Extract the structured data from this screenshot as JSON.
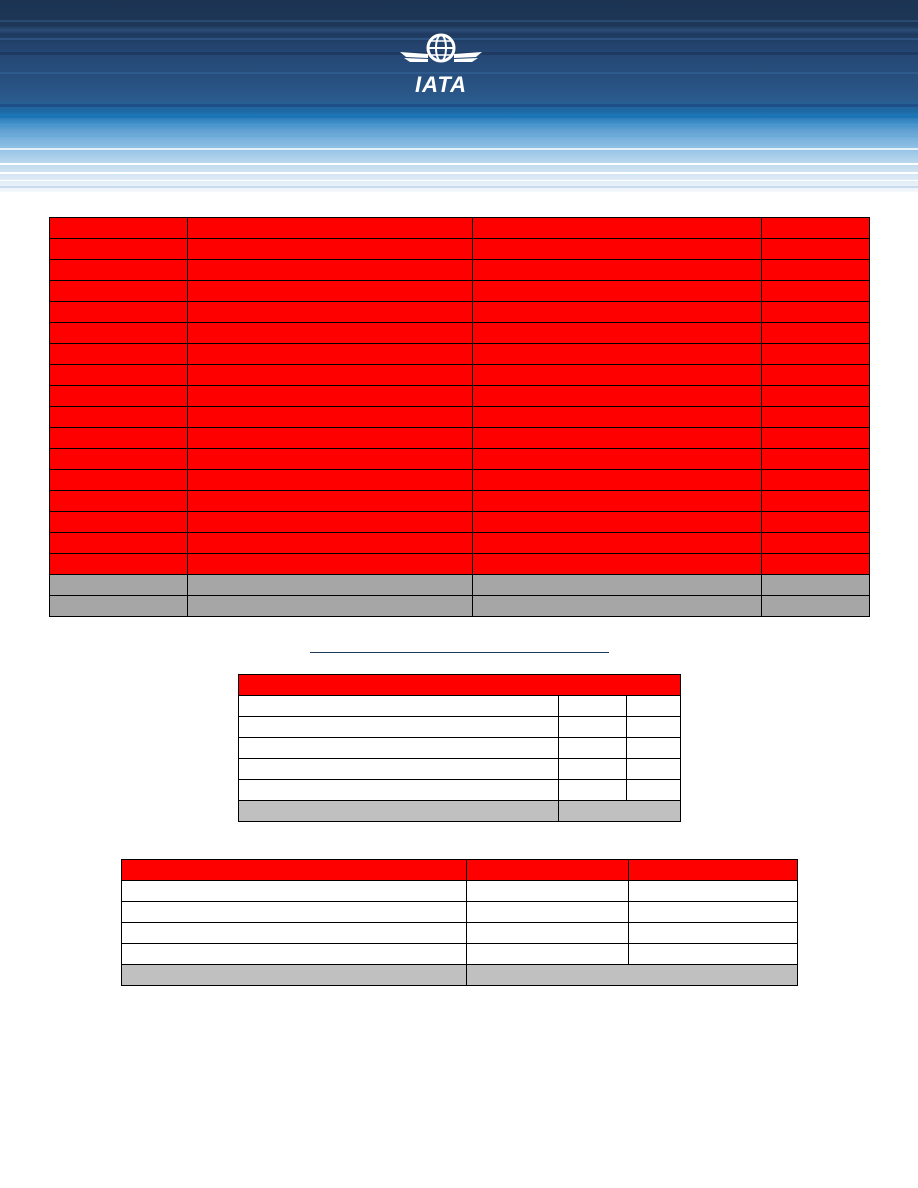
{
  "header": {
    "logo_text": "IATA",
    "logo_alt": "iata-globe-wings-logo"
  },
  "colors": {
    "header_dark": "#1c3352",
    "header_light": "#8cbde3",
    "table_red": "#ff0000",
    "table_grey_dark": "#a6a6a6",
    "table_grey_light": "#c0c0c0"
  },
  "main_table": {
    "red_rows": 17,
    "grey_rows": 2,
    "columns": 4
  },
  "summary_table": {
    "rows": 5,
    "columns": 3
  },
  "lower_table": {
    "rows": 4,
    "columns": 3
  }
}
